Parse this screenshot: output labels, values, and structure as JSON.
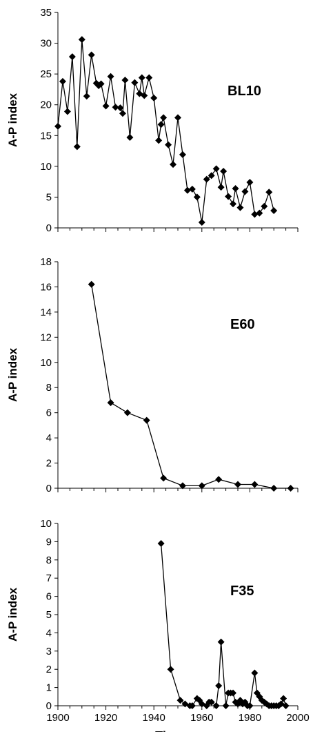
{
  "x_axis": {
    "label": "Time",
    "range": [
      1900,
      2000
    ],
    "ticks": [
      1900,
      1920,
      1940,
      1960,
      1980,
      2000
    ]
  },
  "chart_data": [
    {
      "type": "line",
      "title": "BL10",
      "ylabel": "A-P index",
      "ylim": [
        0,
        35
      ],
      "yticks": [
        0,
        5,
        10,
        15,
        20,
        25,
        30,
        35
      ],
      "xlim": [
        1900,
        2000
      ],
      "marker": "diamond",
      "series": [
        {
          "x": [
            1900,
            1902,
            1904,
            1906,
            1908,
            1910,
            1912,
            1914,
            1916,
            1917,
            1918,
            1920,
            1922,
            1924,
            1926,
            1927,
            1928,
            1930,
            1932,
            1934,
            1935,
            1936,
            1938,
            1940,
            1942,
            1943,
            1944,
            1946,
            1948,
            1950,
            1952,
            1954,
            1956,
            1958,
            1960,
            1962,
            1964,
            1966,
            1968,
            1969,
            1971,
            1973,
            1974,
            1976,
            1978,
            1980,
            1982,
            1984,
            1986,
            1988,
            1990
          ],
          "y": [
            16.5,
            23.8,
            18.9,
            27.8,
            13.2,
            30.6,
            21.4,
            28.1,
            23.5,
            23.1,
            23.4,
            19.8,
            24.6,
            19.6,
            19.5,
            18.6,
            24.0,
            14.7,
            23.6,
            21.8,
            24.4,
            21.5,
            24.4,
            21.1,
            14.2,
            16.8,
            17.9,
            13.5,
            10.3,
            17.9,
            11.9,
            6.1,
            6.3,
            5.0,
            0.9,
            7.9,
            8.5,
            9.6,
            6.6,
            9.2,
            5.1,
            3.9,
            6.4,
            3.3,
            5.9,
            7.4,
            2.2,
            2.4,
            3.5,
            5.8,
            2.8
          ]
        }
      ]
    },
    {
      "type": "line",
      "title": "E60",
      "ylabel": "A-P index",
      "ylim": [
        0,
        18
      ],
      "yticks": [
        0,
        2,
        4,
        6,
        8,
        10,
        12,
        14,
        16,
        18
      ],
      "xlim": [
        1900,
        2000
      ],
      "marker": "diamond",
      "series": [
        {
          "x": [
            1914,
            1922,
            1929,
            1937,
            1944,
            1952,
            1960,
            1967,
            1975,
            1982,
            1990,
            1997
          ],
          "y": [
            16.2,
            6.8,
            6.0,
            5.4,
            0.8,
            0.2,
            0.2,
            0.7,
            0.3,
            0.3,
            0.0,
            0.0
          ]
        }
      ]
    },
    {
      "type": "line",
      "title": "F35",
      "ylabel": "A-P index",
      "ylim": [
        0,
        10
      ],
      "yticks": [
        0,
        1,
        2,
        3,
        4,
        5,
        6,
        7,
        8,
        9,
        10
      ],
      "xlim": [
        1900,
        2000
      ],
      "marker": "diamond",
      "series": [
        {
          "x": [
            1943,
            1947,
            1951,
            1953,
            1955,
            1956,
            1958,
            1959,
            1960,
            1962,
            1963,
            1964,
            1966,
            1967,
            1968,
            1970,
            1971,
            1972,
            1973,
            1974,
            1975,
            1976,
            1977,
            1978,
            1979,
            1980,
            1982,
            1983,
            1984,
            1985,
            1986,
            1987,
            1988,
            1989,
            1990,
            1991,
            1992,
            1993,
            1994,
            1995
          ],
          "y": [
            8.9,
            2.0,
            0.3,
            0.1,
            0.0,
            0.0,
            0.4,
            0.3,
            0.1,
            0.0,
            0.2,
            0.2,
            0.0,
            1.1,
            3.5,
            0.0,
            0.7,
            0.7,
            0.7,
            0.2,
            0.1,
            0.3,
            0.1,
            0.2,
            0.0,
            0.0,
            1.8,
            0.7,
            0.5,
            0.3,
            0.2,
            0.1,
            0.0,
            0.0,
            0.0,
            0.0,
            0.0,
            0.1,
            0.4,
            0.0
          ]
        }
      ]
    }
  ]
}
